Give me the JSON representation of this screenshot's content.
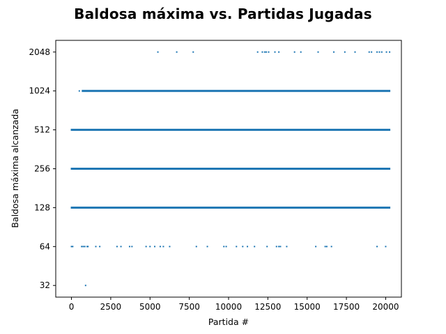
{
  "chart_data": {
    "type": "scatter",
    "title": "Baldosa máxima vs.  Partidas Jugadas",
    "xlabel": "Partida #",
    "ylabel": "Baldosa máxima alcanzada",
    "xlim": [
      -1000,
      21000
    ],
    "ylim_log2": [
      4.7,
      11.3
    ],
    "y_scale": "log2",
    "grid": false,
    "marker_color": "#1f77b4",
    "x_ticks": [
      0,
      2500,
      5000,
      7500,
      10000,
      12500,
      15000,
      17500,
      20000
    ],
    "x_tick_labels": [
      "0",
      "2500",
      "5000",
      "7500",
      "10000",
      "12500",
      "15000",
      "17500",
      "20000"
    ],
    "y_ticks": [
      32,
      64,
      128,
      256,
      512,
      1024,
      2048
    ],
    "y_tick_labels": [
      "32",
      "64",
      "128",
      "256",
      "512",
      "1024",
      "2048"
    ],
    "series": [
      {
        "x": [
          5500,
          6700,
          7750,
          11850,
          12150,
          12300,
          12400,
          12550,
          12950,
          13200,
          14200,
          14600,
          15700,
          16700,
          17400,
          18050,
          18950,
          19100,
          19450,
          19600,
          19750,
          20050,
          20250
        ],
        "y": [
          2048,
          2048,
          2048,
          2048,
          2048,
          2048,
          2048,
          2048,
          2048,
          2048,
          2048,
          2048,
          2048,
          2048,
          2048,
          2048,
          2048,
          2048,
          2048,
          2048,
          2048,
          2048,
          2048
        ]
      },
      {
        "x_range": [
          500,
          20250
        ],
        "dense_from": 700,
        "y": 1024
      },
      {
        "x_range": [
          0,
          20250
        ],
        "y": 512
      },
      {
        "x_range": [
          0,
          20250
        ],
        "y": 256
      },
      {
        "x_range": [
          0,
          20250
        ],
        "y": 128
      },
      {
        "x": [
          0,
          80,
          650,
          750,
          850,
          1000,
          1050,
          1550,
          1800,
          2900,
          3150,
          3700,
          3850,
          4750,
          5000,
          5300,
          5650,
          5850,
          6250,
          7950,
          8650,
          9700,
          9850,
          10500,
          10900,
          11200,
          11650,
          12450,
          13050,
          13200,
          13300,
          13700,
          15550,
          16150,
          16250,
          16550,
          19450,
          20000
        ],
        "y": [
          64,
          64,
          64,
          64,
          64,
          64,
          64,
          64,
          64,
          64,
          64,
          64,
          64,
          64,
          64,
          64,
          64,
          64,
          64,
          64,
          64,
          64,
          64,
          64,
          64,
          64,
          64,
          64,
          64,
          64,
          64,
          64,
          64,
          64,
          64,
          64,
          64,
          64
        ]
      },
      {
        "x": [
          900
        ],
        "y": [
          32
        ]
      }
    ]
  }
}
